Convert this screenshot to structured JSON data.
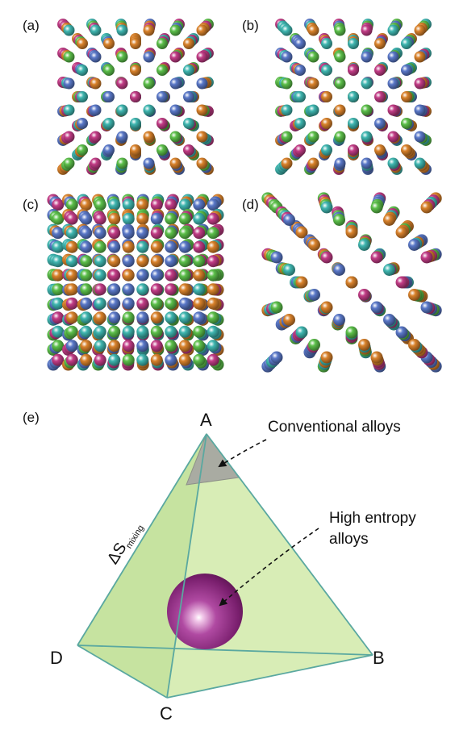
{
  "panels": {
    "a": {
      "label": "(a)"
    },
    "b": {
      "label": "(b)"
    },
    "c": {
      "label": "(c)"
    },
    "d": {
      "label": "(d)"
    },
    "e": {
      "label": "(e)"
    }
  },
  "diagram": {
    "vertices": {
      "A": "A",
      "B": "B",
      "C": "C",
      "D": "D"
    },
    "entropy_symbol": "ΔS",
    "entropy_subscript": "mixing",
    "conventional_label": "Conventional alloys",
    "hea_label_line1": "High entropy",
    "hea_label_line2": "alloys"
  },
  "colors": {
    "atom_colors": [
      "#d9822b",
      "#3fb6b0",
      "#c23c86",
      "#5a78c8",
      "#5cbf4a"
    ],
    "tetra_fill": "#d6ecb0",
    "tetra_edge": "#5aa8a0",
    "corner_fill": "#a8a8a0",
    "sphere": "#9a2f8c"
  }
}
